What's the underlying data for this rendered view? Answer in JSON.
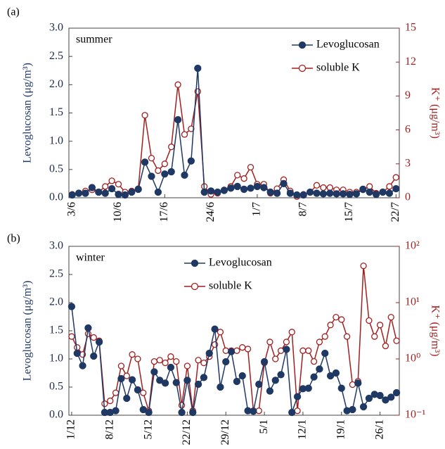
{
  "chart_data": [
    {
      "type": "line",
      "panel_label": "(a)",
      "annotation": "summer",
      "legend": "upper right",
      "y_label": "Levoglucosan (μg/m³)",
      "y2_label": "K⁺ (μg/m³)",
      "categories": [
        "3/6",
        null,
        null,
        null,
        null,
        null,
        null,
        "10/6",
        null,
        null,
        null,
        null,
        null,
        null,
        "17/6",
        null,
        null,
        null,
        null,
        null,
        null,
        "24/6",
        null,
        null,
        null,
        null,
        null,
        null,
        "1/7",
        null,
        null,
        null,
        null,
        null,
        null,
        "8/7",
        null,
        null,
        null,
        null,
        null,
        null,
        "15/7",
        null,
        null,
        null,
        null,
        null,
        null,
        "22/7"
      ],
      "ylim": [
        0,
        3
      ],
      "yticks": [
        {
          "value": 0,
          "label": "0.0"
        },
        {
          "value": 0.5,
          "label": "0.5"
        },
        {
          "value": 1,
          "label": "1.0"
        },
        {
          "value": 1.5,
          "label": "1.5"
        },
        {
          "value": 2,
          "label": "2.0"
        },
        {
          "value": 2.5,
          "label": "2.5"
        },
        {
          "value": 3,
          "label": "3.0"
        }
      ],
      "y2lim": [
        0,
        15
      ],
      "y2ticks": [
        0,
        3,
        6,
        9,
        12,
        15
      ],
      "y2scale": "linear",
      "series": [
        {
          "name": "Levoglucosan",
          "color": "#1f3864",
          "marker": "filled",
          "values": [
            0.05,
            0.08,
            0.08,
            0.18,
            0.1,
            0.08,
            0.16,
            0.06,
            0.05,
            0.1,
            0.15,
            0.63,
            0.38,
            0.1,
            0.42,
            0.46,
            1.38,
            0.4,
            0.65,
            2.29,
            0.1,
            0.12,
            0.1,
            0.13,
            0.17,
            0.2,
            0.15,
            0.17,
            0.2,
            0.18,
            0.1,
            0.08,
            0.25,
            0.08,
            0.05,
            0.05,
            0.1,
            0.08,
            0.07,
            0.08,
            0.07,
            0.07,
            0.06,
            0.07,
            0.15,
            0.1,
            0.06,
            0.1,
            0.08,
            0.16
          ]
        },
        {
          "name": "soluble K",
          "color": "#a31f1f",
          "marker": "open",
          "axis": "y2",
          "values": [
            0.3,
            0.4,
            0.6,
            0.7,
            0.5,
            1,
            1.5,
            1.2,
            0.5,
            0.6,
            0.8,
            7.3,
            3.5,
            2.4,
            3,
            4.5,
            10,
            5.6,
            6.1,
            9.4,
            1,
            0.3,
            0.4,
            0.7,
            1,
            2,
            1.7,
            2.7,
            1.2,
            1.2,
            0.4,
            0.8,
            1.6,
            0.6,
            0.1,
            0.3,
            0.5,
            1.1,
            0.9,
            0.9,
            0.7,
            0.7,
            0.5,
            0.5,
            0.7,
            1,
            0.4,
            0.5,
            1,
            1.8
          ]
        }
      ]
    },
    {
      "type": "line",
      "panel_label": "(b)",
      "annotation": "winter",
      "legend": "upper center",
      "y_label": "Levoglucosan (μg/m³)",
      "y2_label": "K⁺ (μg/m³)",
      "categories": [
        "1/12",
        null,
        null,
        null,
        null,
        null,
        null,
        "8/12",
        null,
        null,
        null,
        null,
        null,
        null,
        "5/12",
        null,
        null,
        null,
        null,
        null,
        null,
        "22/12",
        null,
        null,
        null,
        null,
        null,
        null,
        "29/12",
        null,
        null,
        null,
        null,
        null,
        null,
        "5/1",
        null,
        null,
        null,
        null,
        null,
        null,
        "12/1",
        null,
        null,
        null,
        null,
        null,
        null,
        "19/1",
        null,
        null,
        null,
        null,
        null,
        null,
        "26/1",
        null,
        null,
        null
      ],
      "ylim": [
        0,
        3
      ],
      "yticks": [
        {
          "value": 0,
          "label": "0.0"
        },
        {
          "value": 0.5,
          "label": "0.5"
        },
        {
          "value": 1,
          "label": "1.0"
        },
        {
          "value": 1.5,
          "label": "1.5"
        },
        {
          "value": 2,
          "label": "2.0"
        },
        {
          "value": 2.5,
          "label": "2.5"
        },
        {
          "value": 3,
          "label": "3.0"
        }
      ],
      "y2lim": [
        0.1,
        100
      ],
      "y2ticks": [
        {
          "value": 0.1,
          "label": "10⁻¹"
        },
        {
          "value": 1,
          "label": "10⁰"
        },
        {
          "value": 10,
          "label": "10¹"
        },
        {
          "value": 100,
          "label": "10²"
        }
      ],
      "y2scale": "log",
      "series": [
        {
          "name": "Levoglucosan",
          "color": "#1f3864",
          "marker": "filled",
          "values": [
            1.93,
            1.1,
            0.88,
            1.55,
            1.05,
            1.3,
            0.05,
            0.05,
            0.08,
            0.65,
            0.3,
            0.63,
            0.45,
            0.1,
            0.05,
            0.77,
            0.62,
            0.57,
            0.85,
            0.58,
            0.05,
            0.62,
            0.05,
            0.55,
            0.67,
            1.1,
            1.53,
            0.5,
            0.95,
            1.13,
            0.6,
            0.7,
            0.08,
            0.07,
            0.55,
            0.95,
            0.43,
            0.62,
            0.72,
            1.17,
            0.05,
            0.33,
            0.47,
            0.48,
            0.68,
            0.82,
            1.1,
            0.7,
            0.75,
            0.48,
            0.08,
            0.1,
            0.57,
            0.15,
            0.3,
            0.37,
            0.35,
            0.27,
            0.32,
            0.4
          ]
        },
        {
          "name": "soluble K",
          "color": "#a31f1f",
          "marker": "open",
          "axis": "y2",
          "values": [
            2.5,
            1.6,
            1.2,
            2.8,
            2.4,
            2.1,
            0.16,
            0.18,
            0.25,
            0.75,
            0.5,
            1.2,
            1,
            0.25,
            0.12,
            0.9,
            0.95,
            0.85,
            1.1,
            0.9,
            0.15,
            0.75,
            0.12,
            0.95,
            0.85,
            1.1,
            1.8,
            3,
            1.4,
            1.4,
            1.4,
            1.6,
            1.5,
            0.12,
            0.12,
            0.85,
            2,
            1,
            1.4,
            2,
            3,
            0.12,
            1.4,
            1.4,
            0.9,
            2,
            2.5,
            4,
            5.5,
            5,
            2.5,
            0.35,
            0.4,
            45,
            4.8,
            2.5,
            4,
            1.7,
            5.5,
            2.1
          ]
        }
      ]
    }
  ]
}
